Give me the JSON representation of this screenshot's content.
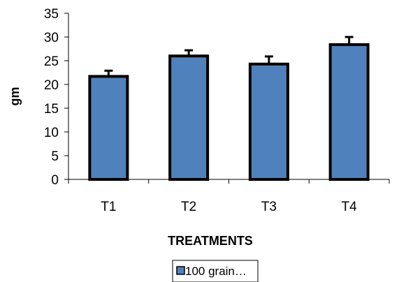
{
  "chart_data": {
    "type": "bar",
    "categories": [
      "T1",
      "T2",
      "T3",
      "T4"
    ],
    "series": [
      {
        "name": "100 grain…",
        "values": [
          21.7,
          26.0,
          24.3,
          28.4
        ],
        "error": [
          1.2,
          1.2,
          1.6,
          1.6
        ],
        "color": "#4F81BD"
      }
    ],
    "xlabel": "TREATMENTS",
    "ylabel": "gm",
    "ylim": [
      0,
      35
    ],
    "yticks": [
      0,
      5,
      10,
      15,
      20,
      25,
      30,
      35
    ],
    "grid": false,
    "legend": "bottom"
  }
}
